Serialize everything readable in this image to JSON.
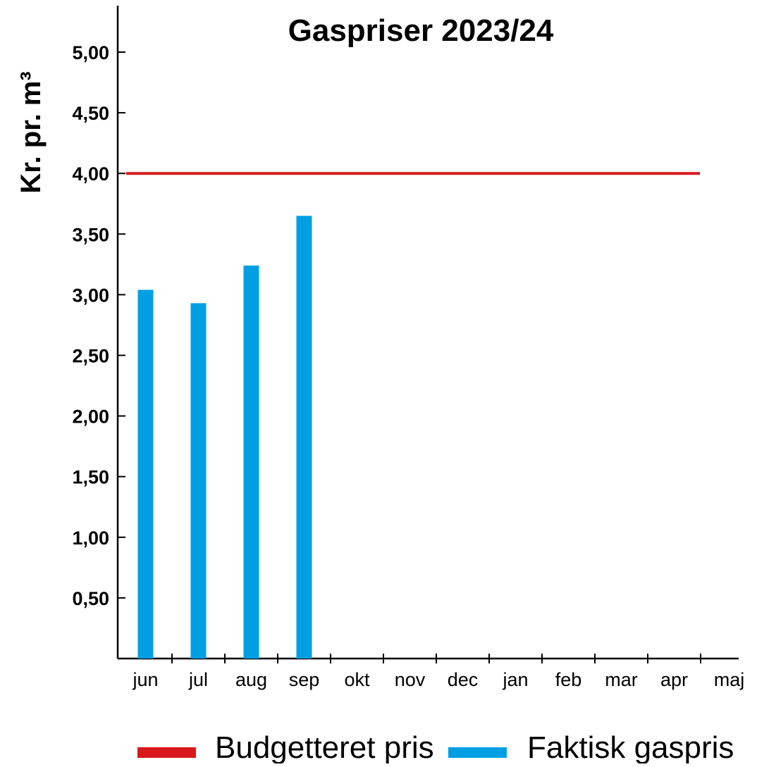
{
  "chart_data": {
    "type": "bar",
    "title": "Gaspriser 2023/24",
    "ylabel": "Kr. pr. m³",
    "xlabel": "",
    "categories": [
      "jun",
      "jul",
      "aug",
      "sep",
      "okt",
      "nov",
      "dec",
      "jan",
      "feb",
      "mar",
      "apr",
      "maj"
    ],
    "series": [
      {
        "name": "Faktisk gaspris",
        "type": "bar",
        "color": "#009fe3",
        "values": [
          3.04,
          2.93,
          3.24,
          3.65,
          null,
          null,
          null,
          null,
          null,
          null,
          null,
          null
        ]
      },
      {
        "name": "Budgetteret pris",
        "type": "line",
        "color": "#d7191c",
        "values": [
          4.0,
          4.0,
          4.0,
          4.0,
          4.0,
          4.0,
          4.0,
          4.0,
          4.0,
          4.0,
          4.0,
          4.0
        ]
      }
    ],
    "ylim": [
      0,
      5.4
    ],
    "yticks": [
      {
        "value": 0.5,
        "label": "0,50"
      },
      {
        "value": 1.0,
        "label": "1,00"
      },
      {
        "value": 1.5,
        "label": "1,50"
      },
      {
        "value": 2.0,
        "label": "2,00"
      },
      {
        "value": 2.5,
        "label": "2,50"
      },
      {
        "value": 3.0,
        "label": "3,00"
      },
      {
        "value": 3.5,
        "label": "3,50"
      },
      {
        "value": 4.0,
        "label": "4,00"
      },
      {
        "value": 4.5,
        "label": "4,50"
      },
      {
        "value": 5.0,
        "label": "5,00"
      }
    ],
    "grid": false,
    "legend": {
      "position": "bottom",
      "entries": [
        {
          "label": "Budgetteret pris",
          "color": "#d7191c"
        },
        {
          "label": "Faktisk gaspris",
          "color": "#009fe3"
        }
      ]
    }
  }
}
